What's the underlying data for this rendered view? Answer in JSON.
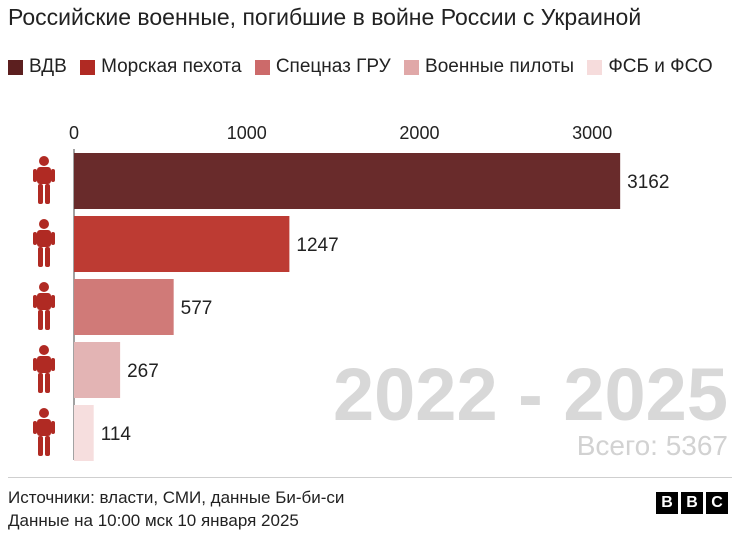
{
  "title": "Российские военные, погибшие в войне России с Украиной",
  "legend": [
    {
      "label": "ВДВ",
      "color": "#5c1f1f"
    },
    {
      "label": "Морская пехота",
      "color": "#b02a23"
    },
    {
      "label": "Спецназ ГРУ",
      "color": "#cc6a6a"
    },
    {
      "label": "Военные пилоты",
      "color": "#e0a8a8"
    },
    {
      "label": "ФСБ и ФСО",
      "color": "#f6dcdc"
    }
  ],
  "watermark": "2022 - 2025",
  "total": "Всего: 5367",
  "footer": {
    "sources": "Источники: власти, СМИ, данные Би-би-си",
    "date": "Данные на 10:00 мск 10 января 2025"
  },
  "logo": [
    "B",
    "B",
    "C"
  ],
  "icon_color": "#b02a23",
  "chart_data": {
    "type": "bar",
    "orientation": "horizontal",
    "categories": [
      "ВДВ",
      "Морская пехота",
      "Спецназ ГРУ",
      "Военные пилоты",
      "ФСБ и ФСО"
    ],
    "values": [
      3162,
      1247,
      577,
      267,
      114
    ],
    "colors": [
      "#692b2b",
      "#bd3b33",
      "#d07a78",
      "#e3b4b4",
      "#f6dede"
    ],
    "xticks": [
      0,
      1000,
      2000,
      3000
    ],
    "xlim": [
      0,
      3300
    ],
    "axis_position": "top",
    "grid": false
  }
}
